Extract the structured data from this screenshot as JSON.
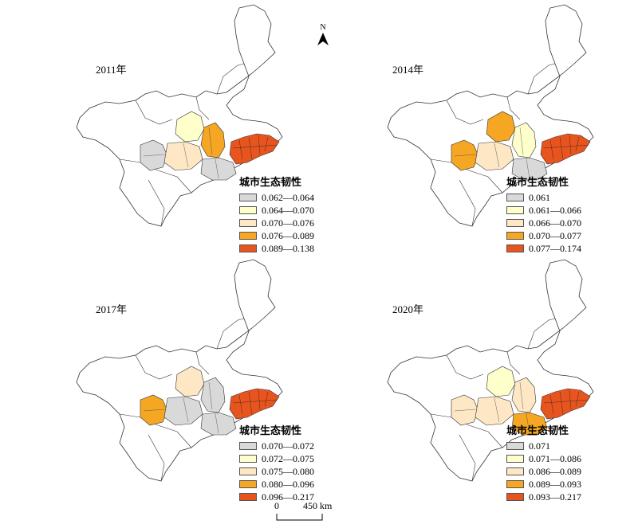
{
  "north_label": "N",
  "scale": {
    "start": "0",
    "end_label": "450 km"
  },
  "legend_title": "城市生态韧性",
  "colors": {
    "c1": "#d9d9d9",
    "c2": "#ffffcc",
    "c3": "#fde7c4",
    "c4": "#f5a623",
    "c5": "#e8541e",
    "border": "#333333"
  },
  "panels": [
    {
      "year": "2011年",
      "classes": [
        "0.062—0.064",
        "0.064—0.070",
        "0.070—0.076",
        "0.076—0.089",
        "0.089—0.138"
      ]
    },
    {
      "year": "2014年",
      "classes": [
        "0.061",
        "0.061—0.066",
        "0.066—0.070",
        "0.070—0.077",
        "0.077—0.174"
      ]
    },
    {
      "year": "2017年",
      "classes": [
        "0.070—0.072",
        "0.072—0.075",
        "0.075—0.080",
        "0.080—0.096",
        "0.096—0.217"
      ]
    },
    {
      "year": "2020年",
      "classes": [
        "0.071",
        "0.071—0.086",
        "0.086—0.089",
        "0.089—0.093",
        "0.093—0.217"
      ]
    }
  ]
}
